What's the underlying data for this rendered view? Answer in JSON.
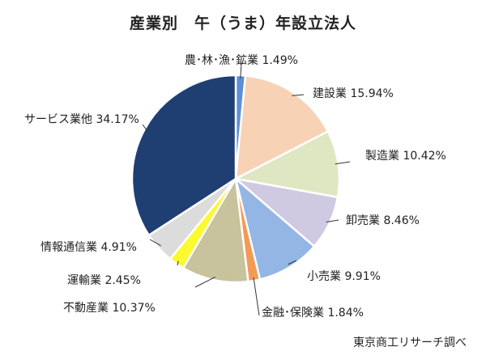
{
  "chart_data": {
    "type": "pie",
    "title": "産業別　午（うま）年設立法人",
    "source": "東京商工リサーチ調べ",
    "slices": [
      {
        "label": "農･林･漁･鉱業",
        "value": 1.49,
        "display": "1.49%",
        "color": "#5b8fd6"
      },
      {
        "label": "建設業",
        "value": 15.94,
        "display": "15.94%",
        "color": "#f8d2b4"
      },
      {
        "label": "製造業",
        "value": 10.42,
        "display": "10.42%",
        "color": "#dfe7c2"
      },
      {
        "label": "卸売業",
        "value": 8.46,
        "display": "8.46%",
        "color": "#cfc9e1"
      },
      {
        "label": "小売業",
        "value": 9.91,
        "display": "9.91%",
        "color": "#93b6e4"
      },
      {
        "label": "金融･保険業",
        "value": 1.84,
        "display": "1.84%",
        "color": "#f39a55"
      },
      {
        "label": "不動産業",
        "value": 10.37,
        "display": "10.37%",
        "color": "#c8c29d"
      },
      {
        "label": "運輸業",
        "value": 2.45,
        "display": "2.45%",
        "color": "#fafa2e"
      },
      {
        "label": "情報通信業",
        "value": 4.91,
        "display": "4.91%",
        "color": "#dcdcdc"
      },
      {
        "label": "サービス業他",
        "value": 34.17,
        "display": "34.17%",
        "color": "#1f3f73"
      }
    ]
  }
}
